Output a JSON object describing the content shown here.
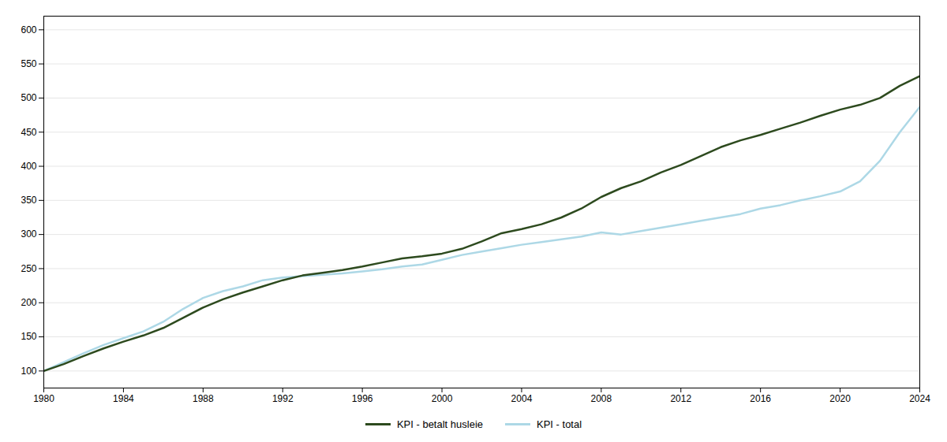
{
  "chart_data": {
    "type": "line",
    "x": [
      1980,
      1981,
      1982,
      1983,
      1984,
      1985,
      1986,
      1987,
      1988,
      1989,
      1990,
      1991,
      1992,
      1993,
      1994,
      1995,
      1996,
      1997,
      1998,
      1999,
      2000,
      2001,
      2002,
      2003,
      2004,
      2005,
      2006,
      2007,
      2008,
      2009,
      2010,
      2011,
      2012,
      2013,
      2014,
      2015,
      2016,
      2017,
      2018,
      2019,
      2020,
      2021,
      2022,
      2023,
      2024
    ],
    "series": [
      {
        "name": "KPI - betalt husleie",
        "color": "#2d4a1e",
        "values": [
          100,
          110,
          122,
          133,
          143,
          152,
          163,
          178,
          193,
          205,
          215,
          224,
          233,
          240,
          244,
          248,
          253,
          259,
          265,
          268,
          272,
          279,
          290,
          302,
          308,
          315,
          325,
          338,
          355,
          368,
          378,
          391,
          402,
          415,
          428,
          438,
          446,
          455,
          464,
          474,
          483,
          490,
          500,
          518,
          532
        ]
      },
      {
        "name": "KPI - total",
        "color": "#add8e6",
        "values": [
          100,
          113,
          126,
          138,
          148,
          158,
          172,
          191,
          207,
          217,
          224,
          233,
          237,
          239,
          241,
          243,
          246,
          249,
          253,
          256,
          263,
          270,
          275,
          280,
          285,
          289,
          293,
          297,
          303,
          300,
          305,
          310,
          315,
          320,
          325,
          330,
          338,
          343,
          350,
          356,
          363,
          378,
          408,
          450,
          487
        ]
      }
    ],
    "xlim": [
      1980,
      2024
    ],
    "xticks": [
      1980,
      1984,
      1988,
      1992,
      1996,
      2000,
      2004,
      2008,
      2012,
      2016,
      2020,
      2024
    ],
    "ylim": [
      75,
      620
    ],
    "yticks": [
      100,
      150,
      200,
      250,
      300,
      350,
      400,
      450,
      500,
      550,
      600
    ],
    "grid": true,
    "legend": "bottom"
  }
}
